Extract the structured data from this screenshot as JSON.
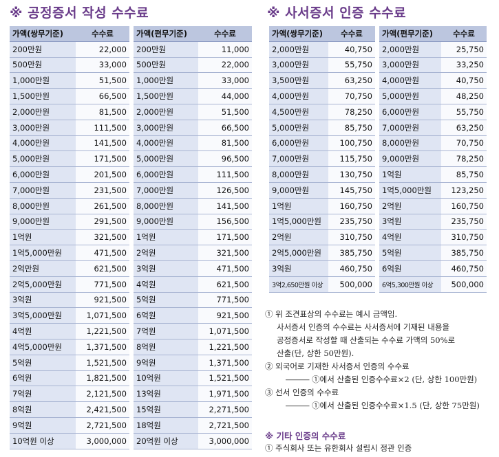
{
  "left": {
    "title": "※ 공정증서 작성 수수료",
    "header": {
      "amt1": "가액(쌍무기준)",
      "fee1": "수수료",
      "amt2": "가액(편무기준)",
      "fee2": "수수료"
    },
    "rows": [
      [
        "200만원",
        "22,000",
        "200만원",
        "11,000"
      ],
      [
        "500만원",
        "33,000",
        "500만원",
        "22,000"
      ],
      [
        "1,000만원",
        "51,500",
        "1,000만원",
        "33,000"
      ],
      [
        "1,500만원",
        "66,500",
        "1,500만원",
        "44,000"
      ],
      [
        "2,000만원",
        "81,500",
        "2,000만원",
        "51,500"
      ],
      [
        "3,000만원",
        "111,500",
        "3,000만원",
        "66,500"
      ],
      [
        "4,000만원",
        "141,500",
        "4,000만원",
        "81,500"
      ],
      [
        "5,000만원",
        "171,500",
        "5,000만원",
        "96,500"
      ],
      [
        "6,000만원",
        "201,500",
        "6,000만원",
        "111,500"
      ],
      [
        "7,000만원",
        "231,500",
        "7,000만원",
        "126,500"
      ],
      [
        "8,000만원",
        "261,500",
        "8,000만원",
        "141,500"
      ],
      [
        "9,000만원",
        "291,500",
        "9,000만원",
        "156,500"
      ],
      [
        "1억원",
        "321,500",
        "1억원",
        "171,500"
      ],
      [
        "1억5,000만원",
        "471,500",
        "2억원",
        "321,500"
      ],
      [
        "2억만원",
        "621,500",
        "3억원",
        "471,500"
      ],
      [
        "2억5,000만원",
        "771,500",
        "4억원",
        "621,500"
      ],
      [
        "3억원",
        "921,500",
        "5억원",
        "771,500"
      ],
      [
        "3억5,000만원",
        "1,071,500",
        "6억원",
        "921,500"
      ],
      [
        "4억원",
        "1,221,500",
        "7억원",
        "1,071,500"
      ],
      [
        "4억5,000만원",
        "1,371,500",
        "8억원",
        "1,221,500"
      ],
      [
        "5억원",
        "1,521,500",
        "9억원",
        "1,371,500"
      ],
      [
        "6억원",
        "1,821,500",
        "10억원",
        "1,521,500"
      ],
      [
        "7억원",
        "2,121,500",
        "13억원",
        "1,971,500"
      ],
      [
        "8억원",
        "2,421,500",
        "15억원",
        "2,271,500"
      ],
      [
        "9억원",
        "2,721,500",
        "18억원",
        "2,721,500"
      ],
      [
        "10억원 이상",
        "3,000,000",
        "20억원 이상",
        "3,000,000"
      ]
    ]
  },
  "right": {
    "title": "※ 사서증서 인증 수수료",
    "header": {
      "amt1": "가액(쌍무기준)",
      "fee1": "수수료",
      "amt2": "가액(편무기준)",
      "fee2": "수수료"
    },
    "rows": [
      [
        "2,000만원",
        "40,750",
        "2,000만원",
        "25,750"
      ],
      [
        "3,000만원",
        "55,750",
        "3,000만원",
        "33,250"
      ],
      [
        "3,500만원",
        "63,250",
        "4,000만원",
        "40,750"
      ],
      [
        "4,000만원",
        "70,750",
        "5,000만원",
        "48,250"
      ],
      [
        "4,500만원",
        "78,250",
        "6,000만원",
        "55,750"
      ],
      [
        "5,000만원",
        "85,750",
        "7,000만원",
        "63,250"
      ],
      [
        "6,000만원",
        "100,750",
        "8,000만원",
        "70,750"
      ],
      [
        "7,000만원",
        "115,750",
        "9,000만원",
        "78,250"
      ],
      [
        "8,000만원",
        "130,750",
        "1억원",
        "85,750"
      ],
      [
        "9,000만원",
        "145,750",
        "1억5,000만원",
        "123,250"
      ],
      [
        "1억원",
        "160,750",
        "2억원",
        "160,750"
      ],
      [
        "1억5,000만원",
        "235,750",
        "3억원",
        "235,750"
      ],
      [
        "2억원",
        "310,750",
        "4억원",
        "310,750"
      ],
      [
        "2억5,000만원",
        "385,750",
        "5억원",
        "385,750"
      ],
      [
        "3억원",
        "460,750",
        "6억원",
        "460,750"
      ],
      [
        "3억2,650만원 이상",
        "500,000",
        "6억5,300만원 이상",
        "500,000"
      ]
    ]
  },
  "notes": {
    "n1a": "① 위 조견표상의 수수료는 예시 금액임.",
    "n1b": "사서증서 인증의 수수료는 사서증서에 기재된 내용을",
    "n1c": "공정증서로 작성할 때 산출되는 수수료 가액의 50%로",
    "n1d": "산출(단, 상한 50만원).",
    "n2a": "② 외국어로 기재한 사서증서 인증의 수수료",
    "n2b": "――― ①에서 산출된 인증수수료×2 (단, 상한 100만원)",
    "n3a": "③ 선서 인증의 수수료",
    "n3b": "――― ①에서 산출된 인증수수료×1.5 (단, 상한 75만원)",
    "other_title": "※ 기타 인증의 수수료",
    "other1": "① 주식회사 또는 유한회사 설립시 정관 인증"
  }
}
